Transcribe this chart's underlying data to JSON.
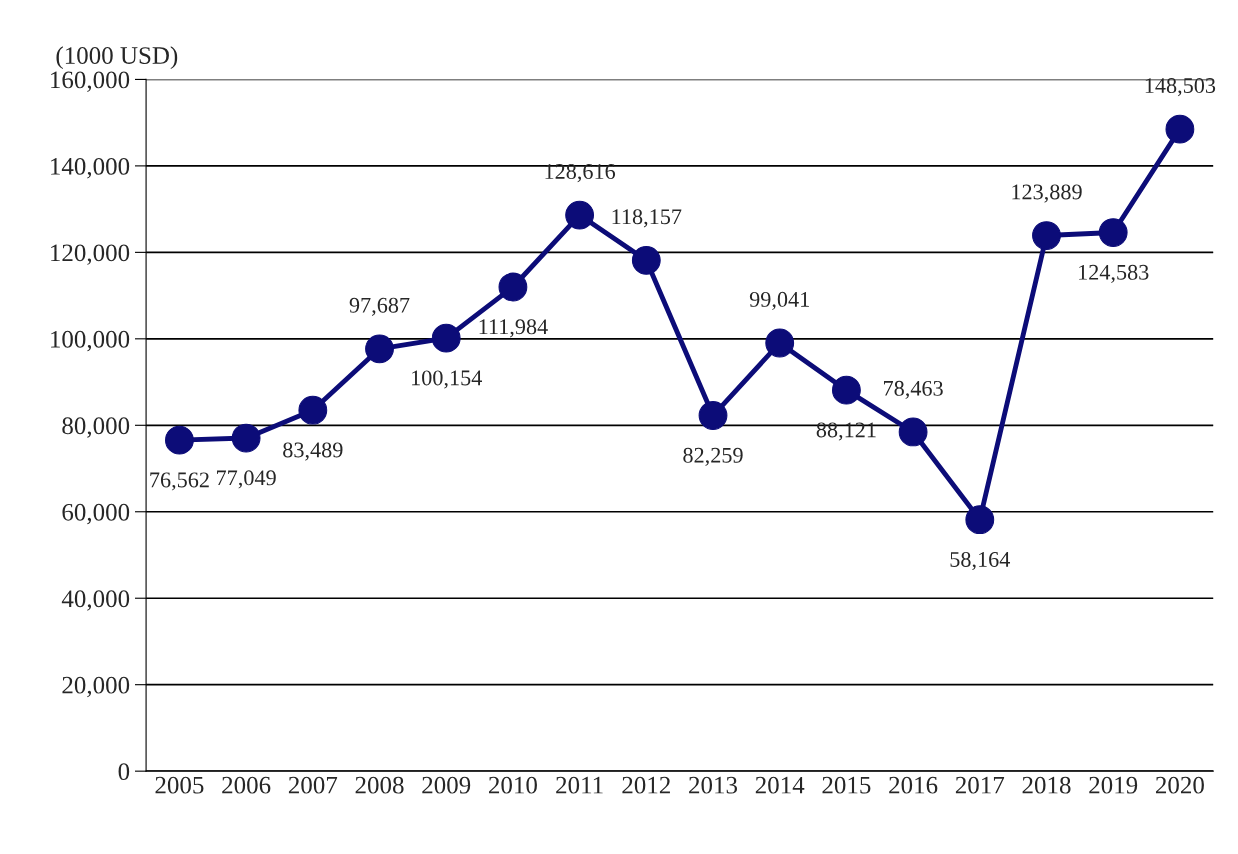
{
  "chart_data": {
    "type": "line",
    "ylabel": "(1000 USD)",
    "categories": [
      "2005",
      "2006",
      "2007",
      "2008",
      "2009",
      "2010",
      "2011",
      "2012",
      "2013",
      "2014",
      "2015",
      "2016",
      "2017",
      "2018",
      "2019",
      "2020"
    ],
    "series": [
      {
        "color": "#0c0c78",
        "values": [
          76562,
          77049,
          83489,
          97687,
          100154,
          111984,
          128616,
          118157,
          82259,
          99041,
          88121,
          78463,
          58164,
          123889,
          124583,
          148503
        ],
        "value_labels": [
          "76,562",
          "77,049",
          "83,489",
          "97,687",
          "100,154",
          "111,984",
          "128,616",
          "118,157",
          "82,259",
          "99,041",
          "88,121",
          "78,463",
          "58,164",
          "123,889",
          "124,583",
          "148,503"
        ]
      }
    ],
    "ylim": [
      0,
      160000
    ],
    "yticks": [
      {
        "value": 0,
        "label": "0"
      },
      {
        "value": 20000,
        "label": "20,000"
      },
      {
        "value": 40000,
        "label": "40,000"
      },
      {
        "value": 60000,
        "label": "60,000"
      },
      {
        "value": 80000,
        "label": "80,000"
      },
      {
        "value": 100000,
        "label": "100,000"
      },
      {
        "value": 120000,
        "label": "120,000"
      },
      {
        "value": 140000,
        "label": "140,000"
      },
      {
        "value": 160000,
        "label": "160,000"
      }
    ],
    "grid": "y",
    "marker": "circle",
    "line_style": "solid",
    "legend": false
  }
}
